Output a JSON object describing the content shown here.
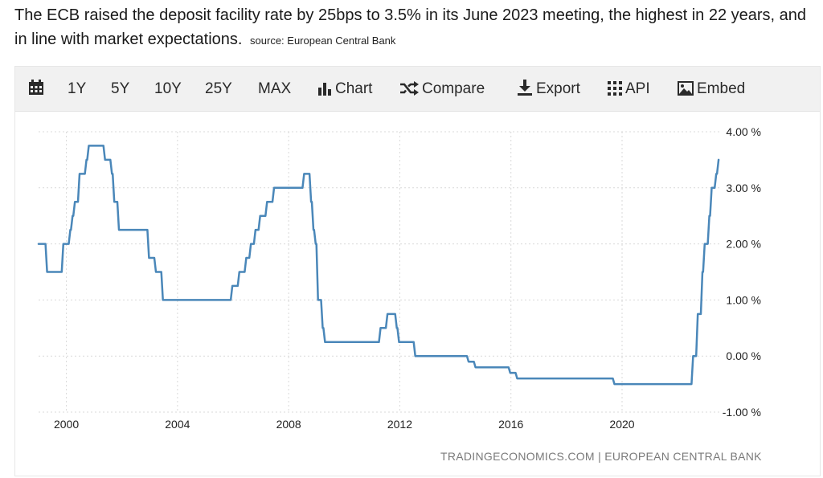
{
  "headline": {
    "text": "The ECB raised the deposit facility rate by 25bps to 3.5% in its June 2023 meeting, the highest in 22 years, and in line with market expectations.",
    "source": "source: European Central Bank"
  },
  "toolbar": {
    "calendar_icon": "calendar-icon",
    "ranges": [
      "1Y",
      "5Y",
      "10Y",
      "25Y",
      "MAX"
    ],
    "chart_label": "Chart",
    "compare_label": "Compare",
    "export_label": "Export",
    "api_label": "API",
    "embed_label": "Embed"
  },
  "credit": "TRADINGECONOMICS.COM | EUROPEAN CENTRAL BANK",
  "colors": {
    "line": "#4a87b9",
    "toolbar_bg": "#f1f1f1",
    "grid": "#d9d9d9"
  },
  "chart_data": {
    "type": "line",
    "title": "",
    "xlabel": "",
    "ylabel": "",
    "xlim": [
      1999.0,
      2023.5
    ],
    "ylim": [
      -1.0,
      4.0
    ],
    "y_ticks": [
      "4.00 %",
      "3.00 %",
      "2.00 %",
      "1.00 %",
      "0.00 %",
      "-1.00 %"
    ],
    "y_tick_values": [
      4,
      3,
      2,
      1,
      0,
      -1
    ],
    "x_ticks": [
      "2000",
      "2004",
      "2008",
      "2012",
      "2016",
      "2020"
    ],
    "x_tick_values": [
      2000,
      2004,
      2008,
      2012,
      2016,
      2020
    ],
    "grid": true,
    "y_axis_side": "right",
    "series": [
      {
        "name": "",
        "step": true,
        "points": [
          [
            "1999-01",
            2.0
          ],
          [
            "1999-04",
            1.5
          ],
          [
            "1999-11",
            2.0
          ],
          [
            "2000-02",
            2.25
          ],
          [
            "2000-03",
            2.5
          ],
          [
            "2000-04",
            2.75
          ],
          [
            "2000-06",
            3.25
          ],
          [
            "2000-09",
            3.5
          ],
          [
            "2000-10",
            3.75
          ],
          [
            "2001-05",
            3.5
          ],
          [
            "2001-08",
            3.25
          ],
          [
            "2001-09",
            2.75
          ],
          [
            "2001-11",
            2.25
          ],
          [
            "2002-12",
            1.75
          ],
          [
            "2003-03",
            1.5
          ],
          [
            "2003-06",
            1.0
          ],
          [
            "2005-12",
            1.25
          ],
          [
            "2006-03",
            1.5
          ],
          [
            "2006-06",
            1.75
          ],
          [
            "2006-08",
            2.0
          ],
          [
            "2006-10",
            2.25
          ],
          [
            "2006-12",
            2.5
          ],
          [
            "2007-03",
            2.75
          ],
          [
            "2007-06",
            3.0
          ],
          [
            "2008-07",
            3.25
          ],
          [
            "2008-10",
            2.75
          ],
          [
            "2008-11",
            2.25
          ],
          [
            "2008-12",
            2.0
          ],
          [
            "2009-01",
            1.0
          ],
          [
            "2009-03",
            0.5
          ],
          [
            "2009-04",
            0.25
          ],
          [
            "2011-04",
            0.5
          ],
          [
            "2011-07",
            0.75
          ],
          [
            "2011-11",
            0.5
          ],
          [
            "2011-12",
            0.25
          ],
          [
            "2012-07",
            0.0
          ],
          [
            "2014-06",
            -0.1
          ],
          [
            "2014-09",
            -0.2
          ],
          [
            "2015-12",
            -0.3
          ],
          [
            "2016-03",
            -0.4
          ],
          [
            "2019-09",
            -0.5
          ],
          [
            "2022-07",
            0.0
          ],
          [
            "2022-09",
            0.75
          ],
          [
            "2022-11",
            1.5
          ],
          [
            "2022-12",
            2.0
          ],
          [
            "2023-02",
            2.5
          ],
          [
            "2023-03",
            3.0
          ],
          [
            "2023-05",
            3.25
          ],
          [
            "2023-06",
            3.5
          ]
        ]
      }
    ]
  }
}
